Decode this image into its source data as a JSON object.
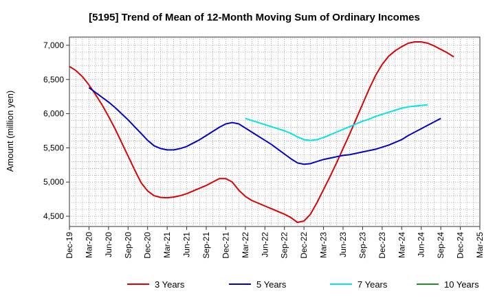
{
  "chart_data": {
    "type": "line",
    "title": "[5195]  Trend of Mean of 12-Month Moving Sum of Ordinary Incomes",
    "ylabel": "Amount (million yen)",
    "xlabel": "",
    "ylim": [
      4350,
      7120
    ],
    "yticks": [
      4500,
      5000,
      5500,
      6000,
      6500,
      7000
    ],
    "ytick_labels": [
      "4,500",
      "5,000",
      "5,500",
      "6,000",
      "6,500",
      "7,000"
    ],
    "x_start": "2019-12",
    "x_end": "2025-03",
    "xtick_labels": [
      "Dec-19",
      "Mar-20",
      "Jun-20",
      "Sep-20",
      "Dec-20",
      "Mar-21",
      "Jun-21",
      "Sep-21",
      "Dec-21",
      "Mar-22",
      "Jun-22",
      "Sep-22",
      "Dec-22",
      "Mar-23",
      "Jun-23",
      "Sep-23",
      "Dec-23",
      "Mar-24",
      "Jun-24",
      "Sep-24",
      "Dec-24",
      "Mar-25"
    ],
    "grid": true,
    "legend_position": "bottom",
    "series": [
      {
        "name": "3 Years",
        "color": "#dd0000",
        "start_index": 0,
        "values": [
          6690,
          6630,
          6540,
          6420,
          6280,
          6130,
          5960,
          5780,
          5580,
          5380,
          5180,
          4990,
          4870,
          4800,
          4775,
          4770,
          4780,
          4800,
          4830,
          4870,
          4910,
          4950,
          5000,
          5050,
          5050,
          5000,
          4880,
          4790,
          4730,
          4690,
          4650,
          4610,
          4570,
          4530,
          4480,
          4410,
          4430,
          4530,
          4700,
          4890,
          5080,
          5280,
          5490,
          5700,
          5920,
          6140,
          6360,
          6560,
          6720,
          6840,
          6920,
          6980,
          7030,
          7050,
          7050,
          7030,
          6990,
          6940,
          6890,
          6830
        ]
      },
      {
        "name": "5 Years",
        "color": "#0000cc",
        "start_index": 3,
        "values": [
          6380,
          6310,
          6240,
          6170,
          6090,
          6000,
          5910,
          5810,
          5710,
          5610,
          5530,
          5490,
          5470,
          5470,
          5490,
          5520,
          5570,
          5620,
          5680,
          5740,
          5800,
          5850,
          5870,
          5850,
          5790,
          5730,
          5670,
          5610,
          5550,
          5480,
          5410,
          5340,
          5280,
          5260,
          5270,
          5300,
          5330,
          5350,
          5370,
          5390,
          5400,
          5420,
          5440,
          5460,
          5480,
          5510,
          5540,
          5580,
          5620,
          5680,
          5730,
          5780,
          5830,
          5880,
          5930
        ]
      },
      {
        "name": "7 Years",
        "color": "#00e5e5",
        "start_index": 27,
        "values": [
          5930,
          5900,
          5870,
          5840,
          5810,
          5780,
          5750,
          5710,
          5660,
          5620,
          5610,
          5620,
          5650,
          5690,
          5730,
          5770,
          5810,
          5850,
          5890,
          5920,
          5960,
          5990,
          6020,
          6050,
          6080,
          6100,
          6110,
          6120,
          6130
        ]
      },
      {
        "name": "10 Years",
        "color": "#228b22",
        "start_index": 0,
        "values": []
      }
    ]
  }
}
